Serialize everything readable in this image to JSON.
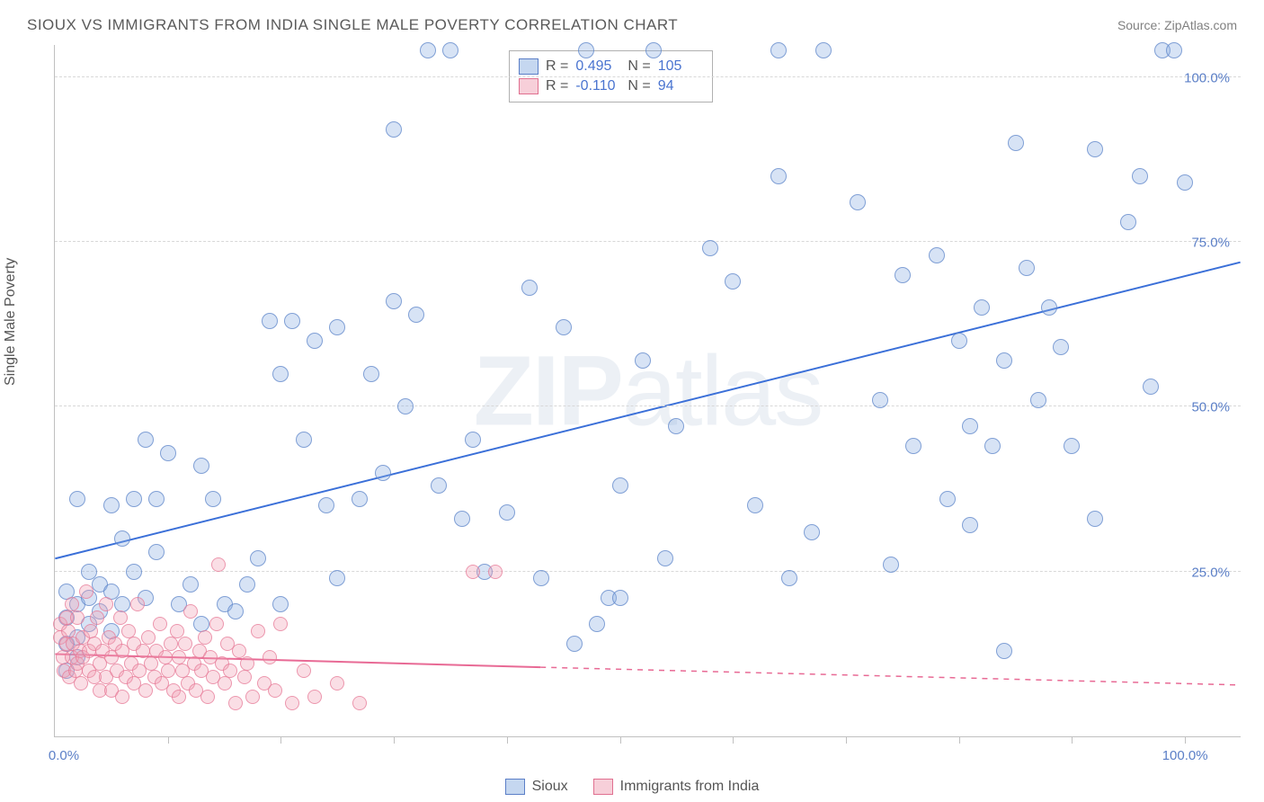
{
  "title": "SIOUX VS IMMIGRANTS FROM INDIA SINGLE MALE POVERTY CORRELATION CHART",
  "source": "Source: ZipAtlas.com",
  "ylabel": "Single Male Poverty",
  "watermark_a": "ZIP",
  "watermark_b": "atlas",
  "chart": {
    "type": "scatter",
    "xlim": [
      0,
      105
    ],
    "ylim": [
      0,
      105
    ],
    "ytick_values": [
      25,
      50,
      75,
      100
    ],
    "ytick_labels": [
      "25.0%",
      "50.0%",
      "75.0%",
      "100.0%"
    ],
    "xtick_values": [
      10,
      20,
      30,
      40,
      50,
      60,
      70,
      80,
      90,
      100
    ],
    "xlabel_min": "0.0%",
    "xlabel_max": "100.0%",
    "background_color": "#ffffff",
    "grid_color": "#d8d8d8",
    "label_color": "#5b7fc7",
    "series": [
      {
        "name": "Sioux",
        "color_fill": "rgba(140,175,225,0.35)",
        "color_stroke": "#5b7fc7",
        "marker_size": 18,
        "R": "0.495",
        "N": "105",
        "trend": {
          "x1": 0,
          "y1": 27,
          "x2": 105,
          "y2": 72,
          "color": "#3a6fd8",
          "width": 2,
          "dash_after": 105
        },
        "points": [
          [
            1,
            18
          ],
          [
            1,
            14
          ],
          [
            1,
            10
          ],
          [
            1,
            22
          ],
          [
            2,
            36
          ],
          [
            2,
            15
          ],
          [
            2,
            20
          ],
          [
            2,
            12
          ],
          [
            3,
            25
          ],
          [
            3,
            21
          ],
          [
            3,
            17
          ],
          [
            4,
            19
          ],
          [
            4,
            23
          ],
          [
            5,
            35
          ],
          [
            5,
            22
          ],
          [
            5,
            16
          ],
          [
            6,
            30
          ],
          [
            6,
            20
          ],
          [
            7,
            25
          ],
          [
            7,
            36
          ],
          [
            8,
            21
          ],
          [
            8,
            45
          ],
          [
            9,
            36
          ],
          [
            9,
            28
          ],
          [
            10,
            43
          ],
          [
            11,
            20
          ],
          [
            12,
            23
          ],
          [
            13,
            41
          ],
          [
            13,
            17
          ],
          [
            14,
            36
          ],
          [
            15,
            20
          ],
          [
            16,
            19
          ],
          [
            17,
            23
          ],
          [
            18,
            27
          ],
          [
            19,
            63
          ],
          [
            20,
            55
          ],
          [
            20,
            20
          ],
          [
            21,
            63
          ],
          [
            22,
            45
          ],
          [
            23,
            60
          ],
          [
            24,
            35
          ],
          [
            25,
            24
          ],
          [
            25,
            62
          ],
          [
            27,
            36
          ],
          [
            28,
            55
          ],
          [
            29,
            40
          ],
          [
            30,
            66
          ],
          [
            30,
            92
          ],
          [
            31,
            50
          ],
          [
            32,
            64
          ],
          [
            33,
            104
          ],
          [
            34,
            38
          ],
          [
            35,
            104
          ],
          [
            36,
            33
          ],
          [
            37,
            45
          ],
          [
            38,
            25
          ],
          [
            40,
            34
          ],
          [
            42,
            68
          ],
          [
            43,
            24
          ],
          [
            45,
            62
          ],
          [
            46,
            14
          ],
          [
            47,
            104
          ],
          [
            48,
            17
          ],
          [
            49,
            21
          ],
          [
            50,
            21
          ],
          [
            50,
            38
          ],
          [
            52,
            57
          ],
          [
            53,
            104
          ],
          [
            54,
            27
          ],
          [
            55,
            47
          ],
          [
            58,
            74
          ],
          [
            60,
            69
          ],
          [
            62,
            35
          ],
          [
            64,
            104
          ],
          [
            64,
            85
          ],
          [
            65,
            24
          ],
          [
            67,
            31
          ],
          [
            68,
            104
          ],
          [
            71,
            81
          ],
          [
            73,
            51
          ],
          [
            74,
            26
          ],
          [
            75,
            70
          ],
          [
            76,
            44
          ],
          [
            78,
            73
          ],
          [
            79,
            36
          ],
          [
            80,
            60
          ],
          [
            81,
            32
          ],
          [
            81,
            47
          ],
          [
            82,
            65
          ],
          [
            83,
            44
          ],
          [
            84,
            13
          ],
          [
            84,
            57
          ],
          [
            85,
            90
          ],
          [
            86,
            71
          ],
          [
            87,
            51
          ],
          [
            88,
            65
          ],
          [
            89,
            59
          ],
          [
            90,
            44
          ],
          [
            92,
            33
          ],
          [
            92,
            89
          ],
          [
            95,
            78
          ],
          [
            96,
            85
          ],
          [
            97,
            53
          ],
          [
            98,
            104
          ],
          [
            99,
            104
          ],
          [
            100,
            84
          ]
        ]
      },
      {
        "name": "Immigrants from India",
        "color_fill": "rgba(240,160,180,0.35)",
        "color_stroke": "#e07090",
        "marker_size": 16,
        "R": "-0.110",
        "N": "94",
        "trend": {
          "x1": 0,
          "y1": 12.5,
          "x2": 43,
          "y2": 10.5,
          "color": "#e86a95",
          "width": 2,
          "dash": {
            "x1": 43,
            "y1": 10.5,
            "x2": 105,
            "y2": 7.8
          }
        },
        "points": [
          [
            0.5,
            15
          ],
          [
            0.5,
            17
          ],
          [
            0.7,
            12
          ],
          [
            0.8,
            10
          ],
          [
            1,
            14
          ],
          [
            1,
            18
          ],
          [
            1.2,
            16
          ],
          [
            1.3,
            9
          ],
          [
            1.5,
            12
          ],
          [
            1.5,
            20
          ],
          [
            1.6,
            14
          ],
          [
            1.8,
            10
          ],
          [
            2,
            11
          ],
          [
            2,
            18
          ],
          [
            2.2,
            13
          ],
          [
            2.3,
            8
          ],
          [
            2.5,
            12
          ],
          [
            2.5,
            15
          ],
          [
            2.8,
            22
          ],
          [
            3,
            10
          ],
          [
            3,
            13
          ],
          [
            3.2,
            16
          ],
          [
            3.5,
            9
          ],
          [
            3.5,
            14
          ],
          [
            3.7,
            18
          ],
          [
            4,
            11
          ],
          [
            4,
            7
          ],
          [
            4.2,
            13
          ],
          [
            4.5,
            20
          ],
          [
            4.5,
            9
          ],
          [
            4.8,
            15
          ],
          [
            5,
            12
          ],
          [
            5,
            7
          ],
          [
            5.3,
            14
          ],
          [
            5.5,
            10
          ],
          [
            5.8,
            18
          ],
          [
            6,
            6
          ],
          [
            6,
            13
          ],
          [
            6.3,
            9
          ],
          [
            6.5,
            16
          ],
          [
            6.8,
            11
          ],
          [
            7,
            14
          ],
          [
            7,
            8
          ],
          [
            7.3,
            20
          ],
          [
            7.5,
            10
          ],
          [
            7.8,
            13
          ],
          [
            8,
            7
          ],
          [
            8.3,
            15
          ],
          [
            8.5,
            11
          ],
          [
            8.8,
            9
          ],
          [
            9,
            13
          ],
          [
            9.3,
            17
          ],
          [
            9.5,
            8
          ],
          [
            9.8,
            12
          ],
          [
            10,
            10
          ],
          [
            10.3,
            14
          ],
          [
            10.5,
            7
          ],
          [
            10.8,
            16
          ],
          [
            11,
            6
          ],
          [
            11,
            12
          ],
          [
            11.3,
            10
          ],
          [
            11.5,
            14
          ],
          [
            11.8,
            8
          ],
          [
            12,
            19
          ],
          [
            12.3,
            11
          ],
          [
            12.5,
            7
          ],
          [
            12.8,
            13
          ],
          [
            13,
            10
          ],
          [
            13.3,
            15
          ],
          [
            13.5,
            6
          ],
          [
            13.8,
            12
          ],
          [
            14,
            9
          ],
          [
            14.3,
            17
          ],
          [
            14.5,
            26
          ],
          [
            14.8,
            11
          ],
          [
            15,
            8
          ],
          [
            15.3,
            14
          ],
          [
            15.5,
            10
          ],
          [
            16,
            5
          ],
          [
            16.3,
            13
          ],
          [
            16.8,
            9
          ],
          [
            17,
            11
          ],
          [
            17.5,
            6
          ],
          [
            18,
            16
          ],
          [
            18.5,
            8
          ],
          [
            19,
            12
          ],
          [
            19.5,
            7
          ],
          [
            20,
            17
          ],
          [
            21,
            5
          ],
          [
            22,
            10
          ],
          [
            23,
            6
          ],
          [
            25,
            8
          ],
          [
            27,
            5
          ],
          [
            37,
            25
          ],
          [
            39,
            25
          ]
        ]
      }
    ]
  },
  "legend": {
    "series1": "Sioux",
    "series2": "Immigrants from India"
  },
  "stats": {
    "r_label": "R =",
    "n_label": "N ="
  }
}
